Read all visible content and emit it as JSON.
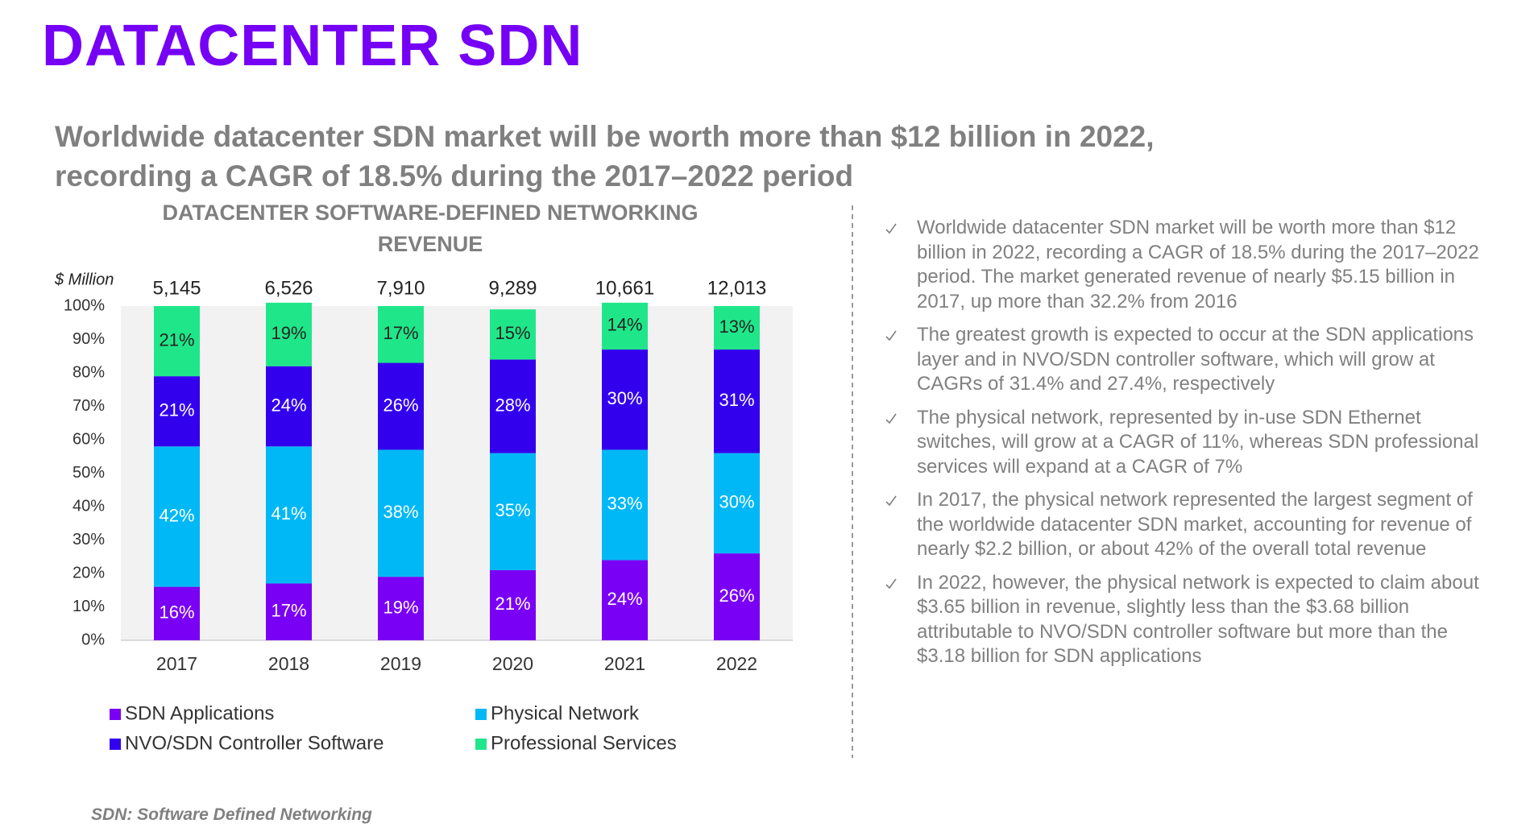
{
  "header": {
    "title": "DATACENTER SDN",
    "subtitle_lines": [
      "Worldwide datacenter SDN market will be worth more than $12 billion in 2022,",
      "recording a CAGR of 18.5% during the 2017–2022 period"
    ]
  },
  "chart_data": {
    "type": "stacked_bar",
    "title_lines": [
      "DATACENTER SOFTWARE-DEFINED NETWORKING",
      "REVENUE"
    ],
    "unit_label": "$ Million",
    "categories": [
      "2017",
      "2018",
      "2019",
      "2020",
      "2021",
      "2022"
    ],
    "totals": {
      "values": [
        5145,
        6526,
        7910,
        9289,
        10661,
        12013
      ],
      "value_labels": [
        "5,145",
        "6,526",
        "7,910",
        "9,289",
        "10,661",
        "12,013"
      ]
    },
    "series": [
      {
        "name": "SDN Applications",
        "color": "#7a00f5",
        "label_color": "#ffffff",
        "values": [
          16,
          17,
          19,
          21,
          24,
          26
        ],
        "value_labels": [
          "16%",
          "17%",
          "19%",
          "21%",
          "24%",
          "26%"
        ]
      },
      {
        "name": "Physical Network",
        "color": "#00b8f5",
        "label_color": "#ffffff",
        "values": [
          42,
          41,
          38,
          35,
          33,
          30
        ],
        "value_labels": [
          "42%",
          "41%",
          "38%",
          "35%",
          "33%",
          "30%"
        ]
      },
      {
        "name": "NVO/SDN Controller Software",
        "color": "#3300ee",
        "label_color": "#ffffff",
        "values": [
          21,
          24,
          26,
          28,
          30,
          31
        ],
        "value_labels": [
          "21%",
          "24%",
          "26%",
          "28%",
          "30%",
          "31%"
        ]
      },
      {
        "name": "Professional Services",
        "color": "#20e68a",
        "label_color": "#222222",
        "values": [
          21,
          19,
          17,
          15,
          14,
          13
        ],
        "value_labels": [
          "21%",
          "19%",
          "17%",
          "15%",
          "14%",
          "13%"
        ]
      }
    ],
    "ylim": [
      0,
      100
    ],
    "yticks": [
      {
        "value": 0,
        "label": "0%"
      },
      {
        "value": 10,
        "label": "10%"
      },
      {
        "value": 20,
        "label": "20%"
      },
      {
        "value": 30,
        "label": "30%"
      },
      {
        "value": 40,
        "label": "40%"
      },
      {
        "value": 50,
        "label": "50%"
      },
      {
        "value": 60,
        "label": "60%"
      },
      {
        "value": 70,
        "label": "70%"
      },
      {
        "value": 80,
        "label": "80%"
      },
      {
        "value": 90,
        "label": "90%"
      },
      {
        "value": 100,
        "label": "100%"
      }
    ],
    "grid": false
  },
  "bullets": [
    "Worldwide datacenter SDN market will be worth more than $12 billion in 2022, recording a CAGR of 18.5% during the 2017–2022 period. The market generated revenue of nearly $5.15 billion in 2017, up more than 32.2% from 2016",
    "The greatest growth is expected to occur at the SDN applications layer and in NVO/SDN controller software, which will grow at CAGRs of 31.4% and 27.4%, respectively",
    "The physical network, represented by in-use SDN Ethernet switches, will grow at a CAGR of 11%, whereas SDN professional services will expand at a CAGR of 7%",
    "In 2017, the physical network represented the largest segment of the worldwide datacenter SDN market, accounting for revenue of nearly $2.2 billion, or about 42% of the overall total revenue",
    "In 2022, however, the physical network is expected to claim about $3.65 billion in revenue, slightly less than the $3.68 billion attributable to NVO/SDN controller software but more than the $3.18 billion for SDN applications"
  ],
  "footnote": "SDN: Software Defined Networking"
}
